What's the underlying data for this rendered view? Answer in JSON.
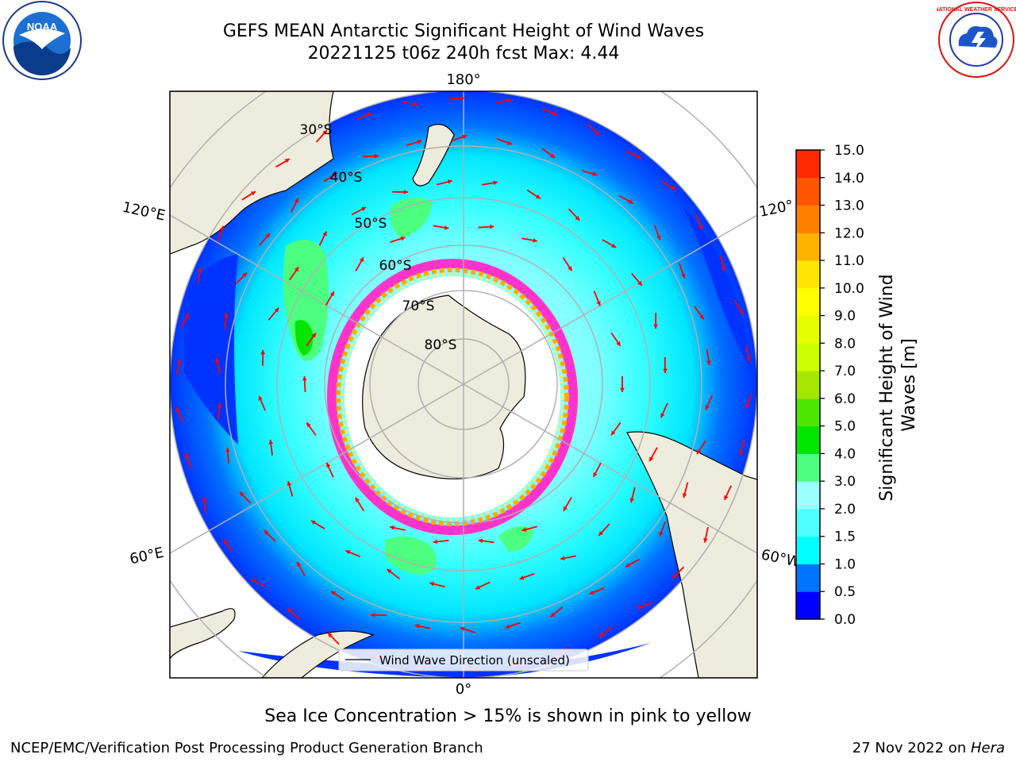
{
  "title": {
    "line1": "GEFS MEAN Antarctic Significant Height of Wind Waves",
    "line2": "20221125 t06z 240h fcst   Max: 4.44"
  },
  "map": {
    "longitude_labels": {
      "top": "180°",
      "bottom": "0°",
      "upper_left": "120°E",
      "lower_left": "60°E",
      "upper_right": "120°",
      "lower_right": "60°W"
    },
    "latitude_labels": [
      "30°S",
      "40°S",
      "50°S",
      "60°S",
      "70°S",
      "80°S"
    ],
    "legend": "Wind Wave Direction (unscaled)",
    "colors": {
      "land": "#eeecdc",
      "ice_sheet": "#ffffff",
      "sea_ice_edge": [
        "#ff33cc",
        "#ffaa00",
        "#ffee55"
      ],
      "vector": "#ff0000",
      "grid": "#b0b0b0"
    }
  },
  "colorbar": {
    "label": "Significant Height of Wind Waves [m]",
    "ticks": [
      "0.0",
      "0.5",
      "1.0",
      "1.5",
      "2.0",
      "3.0",
      "4.0",
      "5.0",
      "6.0",
      "7.0",
      "8.0",
      "9.0",
      "10.0",
      "11.0",
      "12.0",
      "13.0",
      "14.0",
      "15.0"
    ],
    "colors": [
      "#0000ff",
      "#0073ff",
      "#00ffff",
      "#4dffff",
      "#99ffff",
      "#4dff80",
      "#00e600",
      "#4de600",
      "#a6e600",
      "#ccff00",
      "#e6ff00",
      "#ffff00",
      "#ffe600",
      "#ffb300",
      "#ff8000",
      "#ff5500",
      "#ff2a00"
    ]
  },
  "note": "Sea Ice Concentration > 15% is shown in pink to yellow",
  "credit": "NCEP/EMC/Verification Post Processing Product Generation Branch",
  "date": {
    "text": "27 Nov 2022 on ",
    "host": "Hera"
  },
  "logos": {
    "left": "NOAA",
    "right": "NATIONAL WEATHER SERVICE"
  }
}
